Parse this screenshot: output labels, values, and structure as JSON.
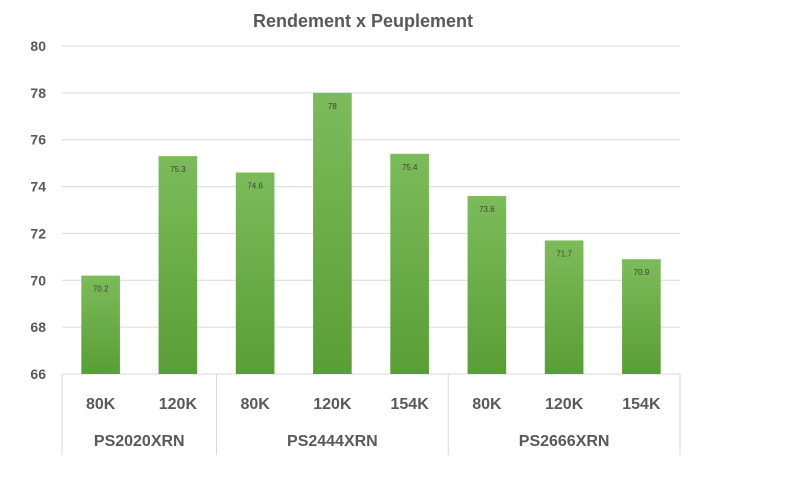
{
  "chart_data": {
    "type": "bar",
    "title": "Rendement x Peuplement",
    "xlabel": "",
    "ylabel": "",
    "ylim": [
      66,
      80
    ],
    "yticks": [
      66,
      68,
      70,
      72,
      74,
      76,
      78,
      80
    ],
    "grid": true,
    "legend": "none",
    "bar_color": "#70ad47",
    "groups": [
      {
        "name": "PS2020XRN",
        "categories": [
          "80K",
          "120K"
        ],
        "values": [
          70.2,
          75.3
        ]
      },
      {
        "name": "PS2444XRN",
        "categories": [
          "80K",
          "120K",
          "154K"
        ],
        "values": [
          74.6,
          78,
          75.4
        ]
      },
      {
        "name": "PS2666XRN",
        "categories": [
          "80K",
          "120K",
          "154K"
        ],
        "values": [
          73.6,
          71.7,
          70.9
        ]
      }
    ]
  }
}
